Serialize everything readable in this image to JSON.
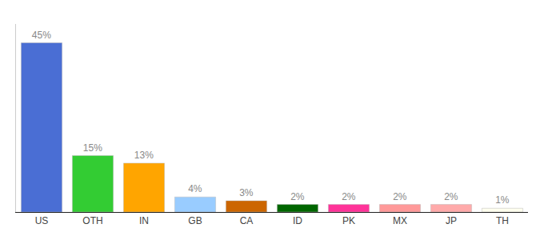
{
  "chart_data": {
    "type": "bar",
    "categories": [
      "US",
      "OTH",
      "IN",
      "GB",
      "CA",
      "ID",
      "PK",
      "MX",
      "JP",
      "TH"
    ],
    "values": [
      45,
      15,
      13,
      4,
      3,
      2,
      2,
      2,
      2,
      1
    ],
    "value_labels": [
      "45%",
      "15%",
      "13%",
      "4%",
      "3%",
      "2%",
      "2%",
      "2%",
      "2%",
      "1%"
    ],
    "colors": [
      "#4A6ED4",
      "#33CC33",
      "#FFA500",
      "#99CCFF",
      "#CC6600",
      "#006600",
      "#FF3399",
      "#FF9999",
      "#FFAAAA",
      "#FFFFEE"
    ],
    "ylim": [
      0,
      50
    ],
    "data_labels": true,
    "tick_labels": "x",
    "grid": false
  }
}
